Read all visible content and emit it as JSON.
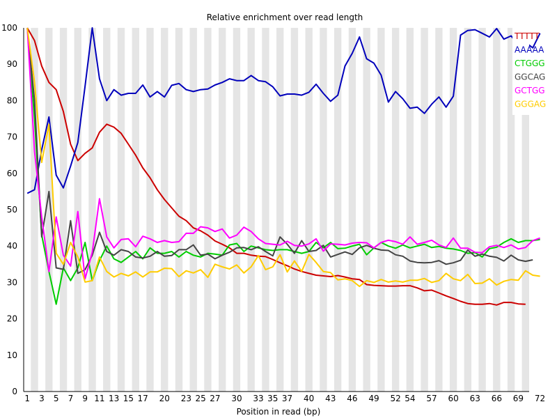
{
  "chart_data": {
    "type": "line",
    "title": "Relative enrichment over read length",
    "xlabel": "Position in read (bp)",
    "ylabel": "",
    "xlim": [
      1,
      72
    ],
    "ylim": [
      0,
      100
    ],
    "y_ticks": [
      0,
      10,
      20,
      30,
      40,
      50,
      60,
      70,
      80,
      90,
      100
    ],
    "x_tick_labels": [
      {
        "pos": 1,
        "label": "1"
      },
      {
        "pos": 3,
        "label": "3"
      },
      {
        "pos": 5,
        "label": "5"
      },
      {
        "pos": 7,
        "label": "7"
      },
      {
        "pos": 9,
        "label": "9"
      },
      {
        "pos": 11,
        "label": "11"
      },
      {
        "pos": 13,
        "label": "13"
      },
      {
        "pos": 15,
        "label": "15"
      },
      {
        "pos": 17,
        "label": "17"
      },
      {
        "pos": 20,
        "label": "20"
      },
      {
        "pos": 23,
        "label": "23"
      },
      {
        "pos": 25,
        "label": "25"
      },
      {
        "pos": 27,
        "label": "27"
      },
      {
        "pos": 30,
        "label": "30"
      },
      {
        "pos": 33,
        "label": "33"
      },
      {
        "pos": 35,
        "label": "35"
      },
      {
        "pos": 37,
        "label": "37"
      },
      {
        "pos": 40,
        "label": "40"
      },
      {
        "pos": 43,
        "label": "43"
      },
      {
        "pos": 46,
        "label": "46"
      },
      {
        "pos": 49,
        "label": "49"
      },
      {
        "pos": 52,
        "label": "52"
      },
      {
        "pos": 54,
        "label": "54"
      },
      {
        "pos": 57,
        "label": "57"
      },
      {
        "pos": 60,
        "label": "60"
      },
      {
        "pos": 63,
        "label": "63"
      },
      {
        "pos": 66,
        "label": "66"
      },
      {
        "pos": 69,
        "label": "69"
      },
      {
        "pos": 72,
        "label": "72"
      }
    ],
    "grid": "alternating vertical bands",
    "legend_position": "top-right",
    "series": [
      {
        "name": "TTTTT",
        "color": "#cc0000",
        "values": [
          100,
          96.5,
          89.5,
          85,
          83,
          77,
          68,
          63.5,
          65.5,
          67,
          71.3,
          73.5,
          72.7,
          71,
          68,
          65,
          61.5,
          58.8,
          55.5,
          52.8,
          50.5,
          48.2,
          47,
          45,
          44.2,
          43,
          41.4,
          40.5,
          39.5,
          38,
          38,
          37.5,
          37.2,
          37.1,
          36.3,
          35.4,
          34.6,
          33.7,
          33,
          32.5,
          32,
          31.8,
          31.6,
          31.9,
          31.5,
          31,
          30.8,
          29.4,
          29.2,
          29.1,
          29,
          29,
          29.1,
          29.1,
          28.5,
          27.7,
          27.9,
          27.1,
          26.3,
          25.6,
          24.8,
          24.2,
          24,
          24,
          24.2,
          23.8,
          24.5,
          24.5,
          24.1,
          24
        ]
      },
      {
        "name": "AAAAA",
        "color": "#0000bb",
        "values": [
          54.5,
          55.5,
          66.5,
          75.5,
          59.5,
          56,
          62,
          68.5,
          84,
          100,
          86,
          80,
          83,
          81.5,
          82,
          82,
          84.3,
          81,
          82.5,
          81,
          84.2,
          84.7,
          83,
          82.5,
          83,
          83.2,
          84.3,
          85,
          86,
          85.5,
          85.5,
          86.9,
          85.5,
          85.2,
          83.8,
          81.3,
          81.8,
          81.8,
          81.5,
          82.3,
          84.5,
          82,
          79.8,
          81.5,
          89.5,
          93,
          97.5,
          91.5,
          90.3,
          87,
          79.6,
          82.5,
          80.5,
          77.9,
          78.2,
          76.5,
          79,
          81,
          78.2,
          81.2,
          98,
          99.3,
          99.5,
          98.5,
          97.5,
          99.8,
          96.9,
          97.8,
          95.3,
          96,
          94.5,
          98.5
        ]
      },
      {
        "name": "CTGGG",
        "color": "#00cc00",
        "values": [
          100,
          75,
          43,
          33,
          24,
          34,
          30.5,
          34,
          41,
          30.5,
          36,
          40,
          36.5,
          35.5,
          37,
          38.5,
          36.5,
          39.5,
          38,
          38,
          38.5,
          37,
          38.5,
          37.5,
          37,
          38,
          37.8,
          37.5,
          40.3,
          40.7,
          38.5,
          40,
          39.5,
          39,
          38.8,
          39,
          39,
          38.5,
          38,
          38.5,
          41,
          39.5,
          41,
          39.3,
          39.4,
          40,
          40.5,
          37.6,
          39.5,
          41,
          40,
          39.4,
          40.3,
          39.5,
          40,
          40.5,
          39.6,
          39.9,
          39.4,
          39.2,
          38.8,
          38,
          38.2,
          37,
          39.3,
          39.7,
          41,
          42,
          41,
          41.5,
          41.5,
          41.8
        ]
      },
      {
        "name": "GGCAG",
        "color": "#444444",
        "values": [
          100,
          80,
          42.5,
          55,
          34,
          33.6,
          47,
          32.5,
          33.5,
          37.5,
          43.8,
          38.5,
          37.5,
          39,
          38.5,
          37,
          36.7,
          37.2,
          38.5,
          37.2,
          37.4,
          39,
          39,
          40.3,
          37.5,
          37.8,
          36.5,
          37.5,
          38.3,
          39.5,
          39.6,
          39,
          39.8,
          38.5,
          37.3,
          42.5,
          40.5,
          38,
          41.5,
          38.5,
          38.8,
          40.2,
          37,
          37.7,
          38.4,
          37.7,
          39.5,
          40.2,
          39.4,
          38.9,
          38.8,
          37.6,
          37.2,
          35.9,
          35.5,
          35.4,
          35.5,
          36,
          35,
          35.4,
          36.1,
          38.9,
          37.2,
          37.8,
          37.2,
          36.9,
          35.9,
          37.5,
          36.2,
          35.8,
          36.2
        ]
      },
      {
        "name": "GCTGG",
        "color": "#ff00ff",
        "values": [
          100,
          66,
          48,
          33,
          48,
          37.5,
          34.5,
          49.5,
          31,
          38.3,
          53,
          42.5,
          39.5,
          41.8,
          42,
          39.8,
          42.7,
          42,
          41,
          41.5,
          41,
          41.2,
          43.5,
          43.5,
          45.3,
          45,
          44,
          44.7,
          42.2,
          43,
          45.2,
          44,
          42,
          40.7,
          40.5,
          40.3,
          41.3,
          40.2,
          40,
          40.6,
          42,
          38.6,
          40.6,
          40.5,
          40.3,
          40.8,
          41,
          40.9,
          39.5,
          41,
          41.6,
          41.2,
          40.5,
          42.5,
          40.5,
          41,
          41.6,
          40.3,
          39.6,
          42.2,
          39.4,
          39.4,
          38.3,
          38.2,
          39.8,
          40.2,
          39.6,
          40.3,
          39.2,
          39.6,
          41.5,
          42.2
        ]
      },
      {
        "name": "GGGAG",
        "color": "#ffcc00",
        "values": [
          100,
          85,
          63,
          73.5,
          38,
          35,
          41,
          37,
          30.1,
          30.5,
          37,
          33,
          31.5,
          32.5,
          31.8,
          32.9,
          31.5,
          32.9,
          32.9,
          33.9,
          33.8,
          31.6,
          33.2,
          32.6,
          33.5,
          31.4,
          35,
          34.3,
          33.7,
          34.8,
          32.6,
          34.3,
          37.4,
          33.5,
          34.3,
          37.6,
          32.9,
          35.9,
          33,
          37.7,
          35.5,
          33,
          32.7,
          30.7,
          31,
          30.5,
          28.9,
          30.5,
          30,
          30.8,
          30.1,
          30.4,
          30.1,
          30.6,
          30.6,
          31.1,
          30,
          30.5,
          32.5,
          31,
          30.5,
          32.2,
          29.7,
          29.8,
          31,
          29.3,
          30.3,
          30.8,
          30.6,
          33.2,
          32,
          31.7
        ]
      }
    ]
  }
}
